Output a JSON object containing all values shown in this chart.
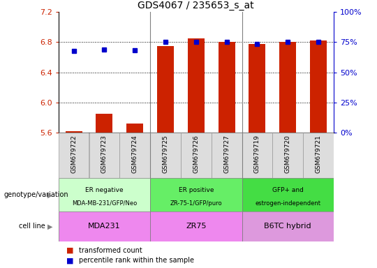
{
  "title": "GDS4067 / 235653_s_at",
  "samples": [
    "GSM679722",
    "GSM679723",
    "GSM679724",
    "GSM679725",
    "GSM679726",
    "GSM679727",
    "GSM679719",
    "GSM679720",
    "GSM679721"
  ],
  "red_values": [
    5.62,
    5.85,
    5.72,
    6.75,
    6.85,
    6.8,
    6.78,
    6.8,
    6.82
  ],
  "blue_values": [
    6.68,
    6.7,
    6.69,
    6.8,
    6.8,
    6.8,
    6.78,
    6.8,
    6.8
  ],
  "ylim": [
    5.6,
    7.2
  ],
  "yticks": [
    5.6,
    6.0,
    6.4,
    6.8,
    7.2
  ],
  "y2ticks": [
    0,
    25,
    50,
    75,
    100
  ],
  "y2labels": [
    "0%",
    "25%",
    "50%",
    "75%",
    "100%"
  ],
  "bar_color": "#cc2200",
  "dot_color": "#0000cc",
  "grid_lines": [
    6.0,
    6.4,
    6.8
  ],
  "geno_groups": [
    [
      0,
      3,
      "#ccffcc",
      "ER negative",
      "MDA-MB-231/GFP/Neo"
    ],
    [
      3,
      6,
      "#66ee66",
      "ER positive",
      "ZR-75-1/GFP/puro"
    ],
    [
      6,
      9,
      "#44dd44",
      "GFP+ and",
      "estrogen-independent"
    ]
  ],
  "cell_groups": [
    [
      0,
      3,
      "#ee88ee",
      "MDA231"
    ],
    [
      3,
      6,
      "#ee88ee",
      "ZR75"
    ],
    [
      6,
      9,
      "#dd99dd",
      "B6TC hybrid"
    ]
  ],
  "legend_items": [
    "transformed count",
    "percentile rank within the sample"
  ],
  "genotype_label": "genotype/variation",
  "cell_line_label": "cell line"
}
